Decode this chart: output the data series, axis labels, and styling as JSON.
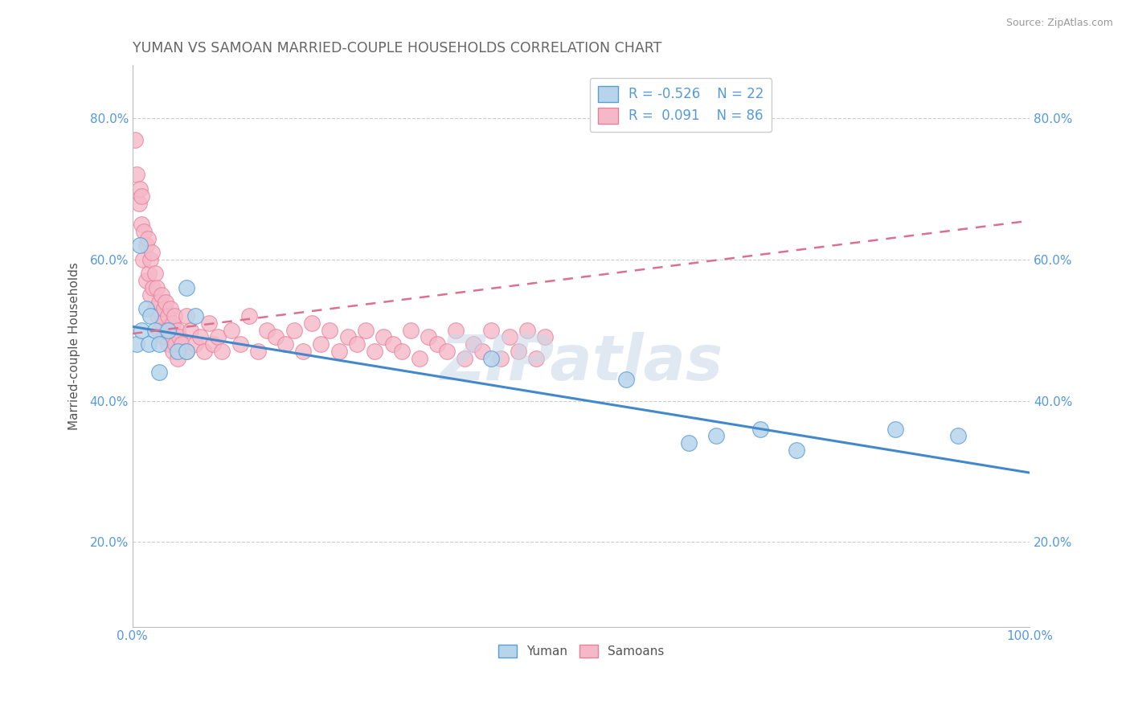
{
  "title": "YUMAN VS SAMOAN MARRIED-COUPLE HOUSEHOLDS CORRELATION CHART",
  "source": "Source: ZipAtlas.com",
  "ylabel": "Married-couple Households",
  "legend_label1": "Yuman",
  "legend_label2": "Samoans",
  "R_yuman": -0.526,
  "N_yuman": 22,
  "R_samoan": 0.091,
  "N_samoan": 86,
  "yuman_fill": "#b8d4ea",
  "samoan_fill": "#f5b8c8",
  "yuman_edge": "#5a9fd4",
  "samoan_edge": "#e8809a",
  "yuman_line": "#4488cc",
  "samoan_line": "#dd7090",
  "watermark": "ZIPatlas",
  "bg": "#ffffff",
  "grid_color": "#cccccc",
  "title_color": "#666666",
  "tick_color": "#5599dd",
  "source_color": "#999999",
  "ylabel_color": "#555555",
  "yticks": [
    0.2,
    0.4,
    0.6,
    0.8
  ],
  "ytick_labels": [
    "20.0%",
    "40.0%",
    "60.0%",
    "80.0%"
  ],
  "ymin": 0.08,
  "ymax": 0.875,
  "xmin": 0.0,
  "xmax": 1.0,
  "yuman_x": [
    0.005,
    0.008,
    0.01,
    0.015,
    0.018,
    0.02,
    0.025,
    0.03,
    0.04,
    0.05,
    0.06,
    0.07,
    0.03,
    0.06,
    0.4,
    0.55,
    0.62,
    0.65,
    0.7,
    0.74,
    0.85,
    0.92
  ],
  "yuman_y": [
    0.48,
    0.62,
    0.5,
    0.53,
    0.48,
    0.52,
    0.5,
    0.48,
    0.5,
    0.47,
    0.47,
    0.52,
    0.44,
    0.56,
    0.46,
    0.43,
    0.34,
    0.35,
    0.36,
    0.33,
    0.36,
    0.35
  ],
  "samoan_x": [
    0.003,
    0.005,
    0.007,
    0.008,
    0.01,
    0.01,
    0.012,
    0.013,
    0.015,
    0.015,
    0.017,
    0.018,
    0.02,
    0.02,
    0.022,
    0.023,
    0.025,
    0.025,
    0.027,
    0.028,
    0.03,
    0.03,
    0.032,
    0.033,
    0.035,
    0.035,
    0.037,
    0.038,
    0.04,
    0.04,
    0.042,
    0.043,
    0.045,
    0.045,
    0.047,
    0.048,
    0.05,
    0.05,
    0.052,
    0.055,
    0.06,
    0.06,
    0.065,
    0.07,
    0.075,
    0.08,
    0.085,
    0.09,
    0.095,
    0.1,
    0.11,
    0.12,
    0.13,
    0.14,
    0.15,
    0.16,
    0.17,
    0.18,
    0.19,
    0.2,
    0.21,
    0.22,
    0.23,
    0.24,
    0.25,
    0.26,
    0.27,
    0.28,
    0.29,
    0.3,
    0.31,
    0.32,
    0.33,
    0.34,
    0.35,
    0.36,
    0.37,
    0.38,
    0.39,
    0.4,
    0.41,
    0.42,
    0.43,
    0.44,
    0.45,
    0.46
  ],
  "samoan_y": [
    0.77,
    0.72,
    0.68,
    0.7,
    0.65,
    0.69,
    0.6,
    0.64,
    0.62,
    0.57,
    0.63,
    0.58,
    0.6,
    0.55,
    0.61,
    0.56,
    0.58,
    0.53,
    0.56,
    0.52,
    0.54,
    0.5,
    0.55,
    0.51,
    0.53,
    0.49,
    0.54,
    0.5,
    0.52,
    0.48,
    0.53,
    0.49,
    0.51,
    0.47,
    0.52,
    0.48,
    0.5,
    0.46,
    0.49,
    0.48,
    0.52,
    0.47,
    0.5,
    0.48,
    0.49,
    0.47,
    0.51,
    0.48,
    0.49,
    0.47,
    0.5,
    0.48,
    0.52,
    0.47,
    0.5,
    0.49,
    0.48,
    0.5,
    0.47,
    0.51,
    0.48,
    0.5,
    0.47,
    0.49,
    0.48,
    0.5,
    0.47,
    0.49,
    0.48,
    0.47,
    0.5,
    0.46,
    0.49,
    0.48,
    0.47,
    0.5,
    0.46,
    0.48,
    0.47,
    0.5,
    0.46,
    0.49,
    0.47,
    0.5,
    0.46,
    0.49
  ],
  "yuman_line_x0": 0.0,
  "yuman_line_y0": 0.505,
  "yuman_line_x1": 1.0,
  "yuman_line_y1": 0.298,
  "samoan_line_x0": 0.0,
  "samoan_line_y0": 0.495,
  "samoan_line_x1": 1.0,
  "samoan_line_y1": 0.655
}
